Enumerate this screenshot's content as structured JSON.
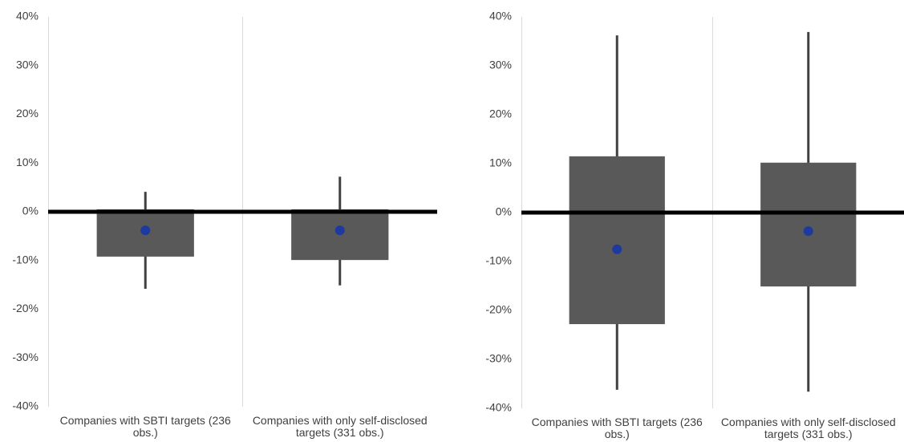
{
  "chart_data": [
    {
      "type": "box",
      "categories": [
        "Companies with SBTI targets (236 obs.)",
        "Companies with only self-disclosed targets (331 obs.)"
      ],
      "whisker_low": [
        -15.8,
        -15.1
      ],
      "box_low": [
        -9.2,
        -9.9
      ],
      "box_high": [
        0.5,
        0.5
      ],
      "whisker_high": [
        4.1,
        7.2
      ],
      "dot": [
        -3.8,
        -3.8
      ],
      "box_color": "#595959",
      "whisker_color": "#404040",
      "dot_color": "#1f3a9e",
      "ylim": [
        -40,
        40
      ],
      "yticks": [
        {
          "value": -40,
          "label": "-40%"
        },
        {
          "value": -30,
          "label": "-30%"
        },
        {
          "value": -20,
          "label": "-20%"
        },
        {
          "value": -10,
          "label": "-10%"
        },
        {
          "value": 0,
          "label": "0%"
        },
        {
          "value": 10,
          "label": "10%"
        },
        {
          "value": 20,
          "label": "20%"
        },
        {
          "value": 30,
          "label": "30%"
        },
        {
          "value": 40,
          "label": "40%"
        }
      ],
      "zero_line": true
    },
    {
      "type": "box",
      "categories": [
        "Companies with SBTI targets (236 obs.)",
        "Companies with only self-disclosed targets (331 obs.)"
      ],
      "whisker_low": [
        -36.2,
        -36.6
      ],
      "box_low": [
        -22.8,
        -15.1
      ],
      "box_high": [
        11.5,
        10.2
      ],
      "whisker_high": [
        36.2,
        36.9
      ],
      "dot": [
        -7.5,
        -3.8
      ],
      "box_color": "#595959",
      "whisker_color": "#404040",
      "dot_color": "#1f3a9e",
      "ylim": [
        -40,
        40
      ],
      "yticks": [
        {
          "value": -40,
          "label": "-40%"
        },
        {
          "value": -30,
          "label": "-30%"
        },
        {
          "value": -20,
          "label": "-20%"
        },
        {
          "value": -10,
          "label": "-10%"
        },
        {
          "value": 0,
          "label": "0%"
        },
        {
          "value": 10,
          "label": "10%"
        },
        {
          "value": 20,
          "label": "20%"
        },
        {
          "value": 30,
          "label": "30%"
        },
        {
          "value": 40,
          "label": "40%"
        }
      ],
      "zero_line": true
    }
  ]
}
